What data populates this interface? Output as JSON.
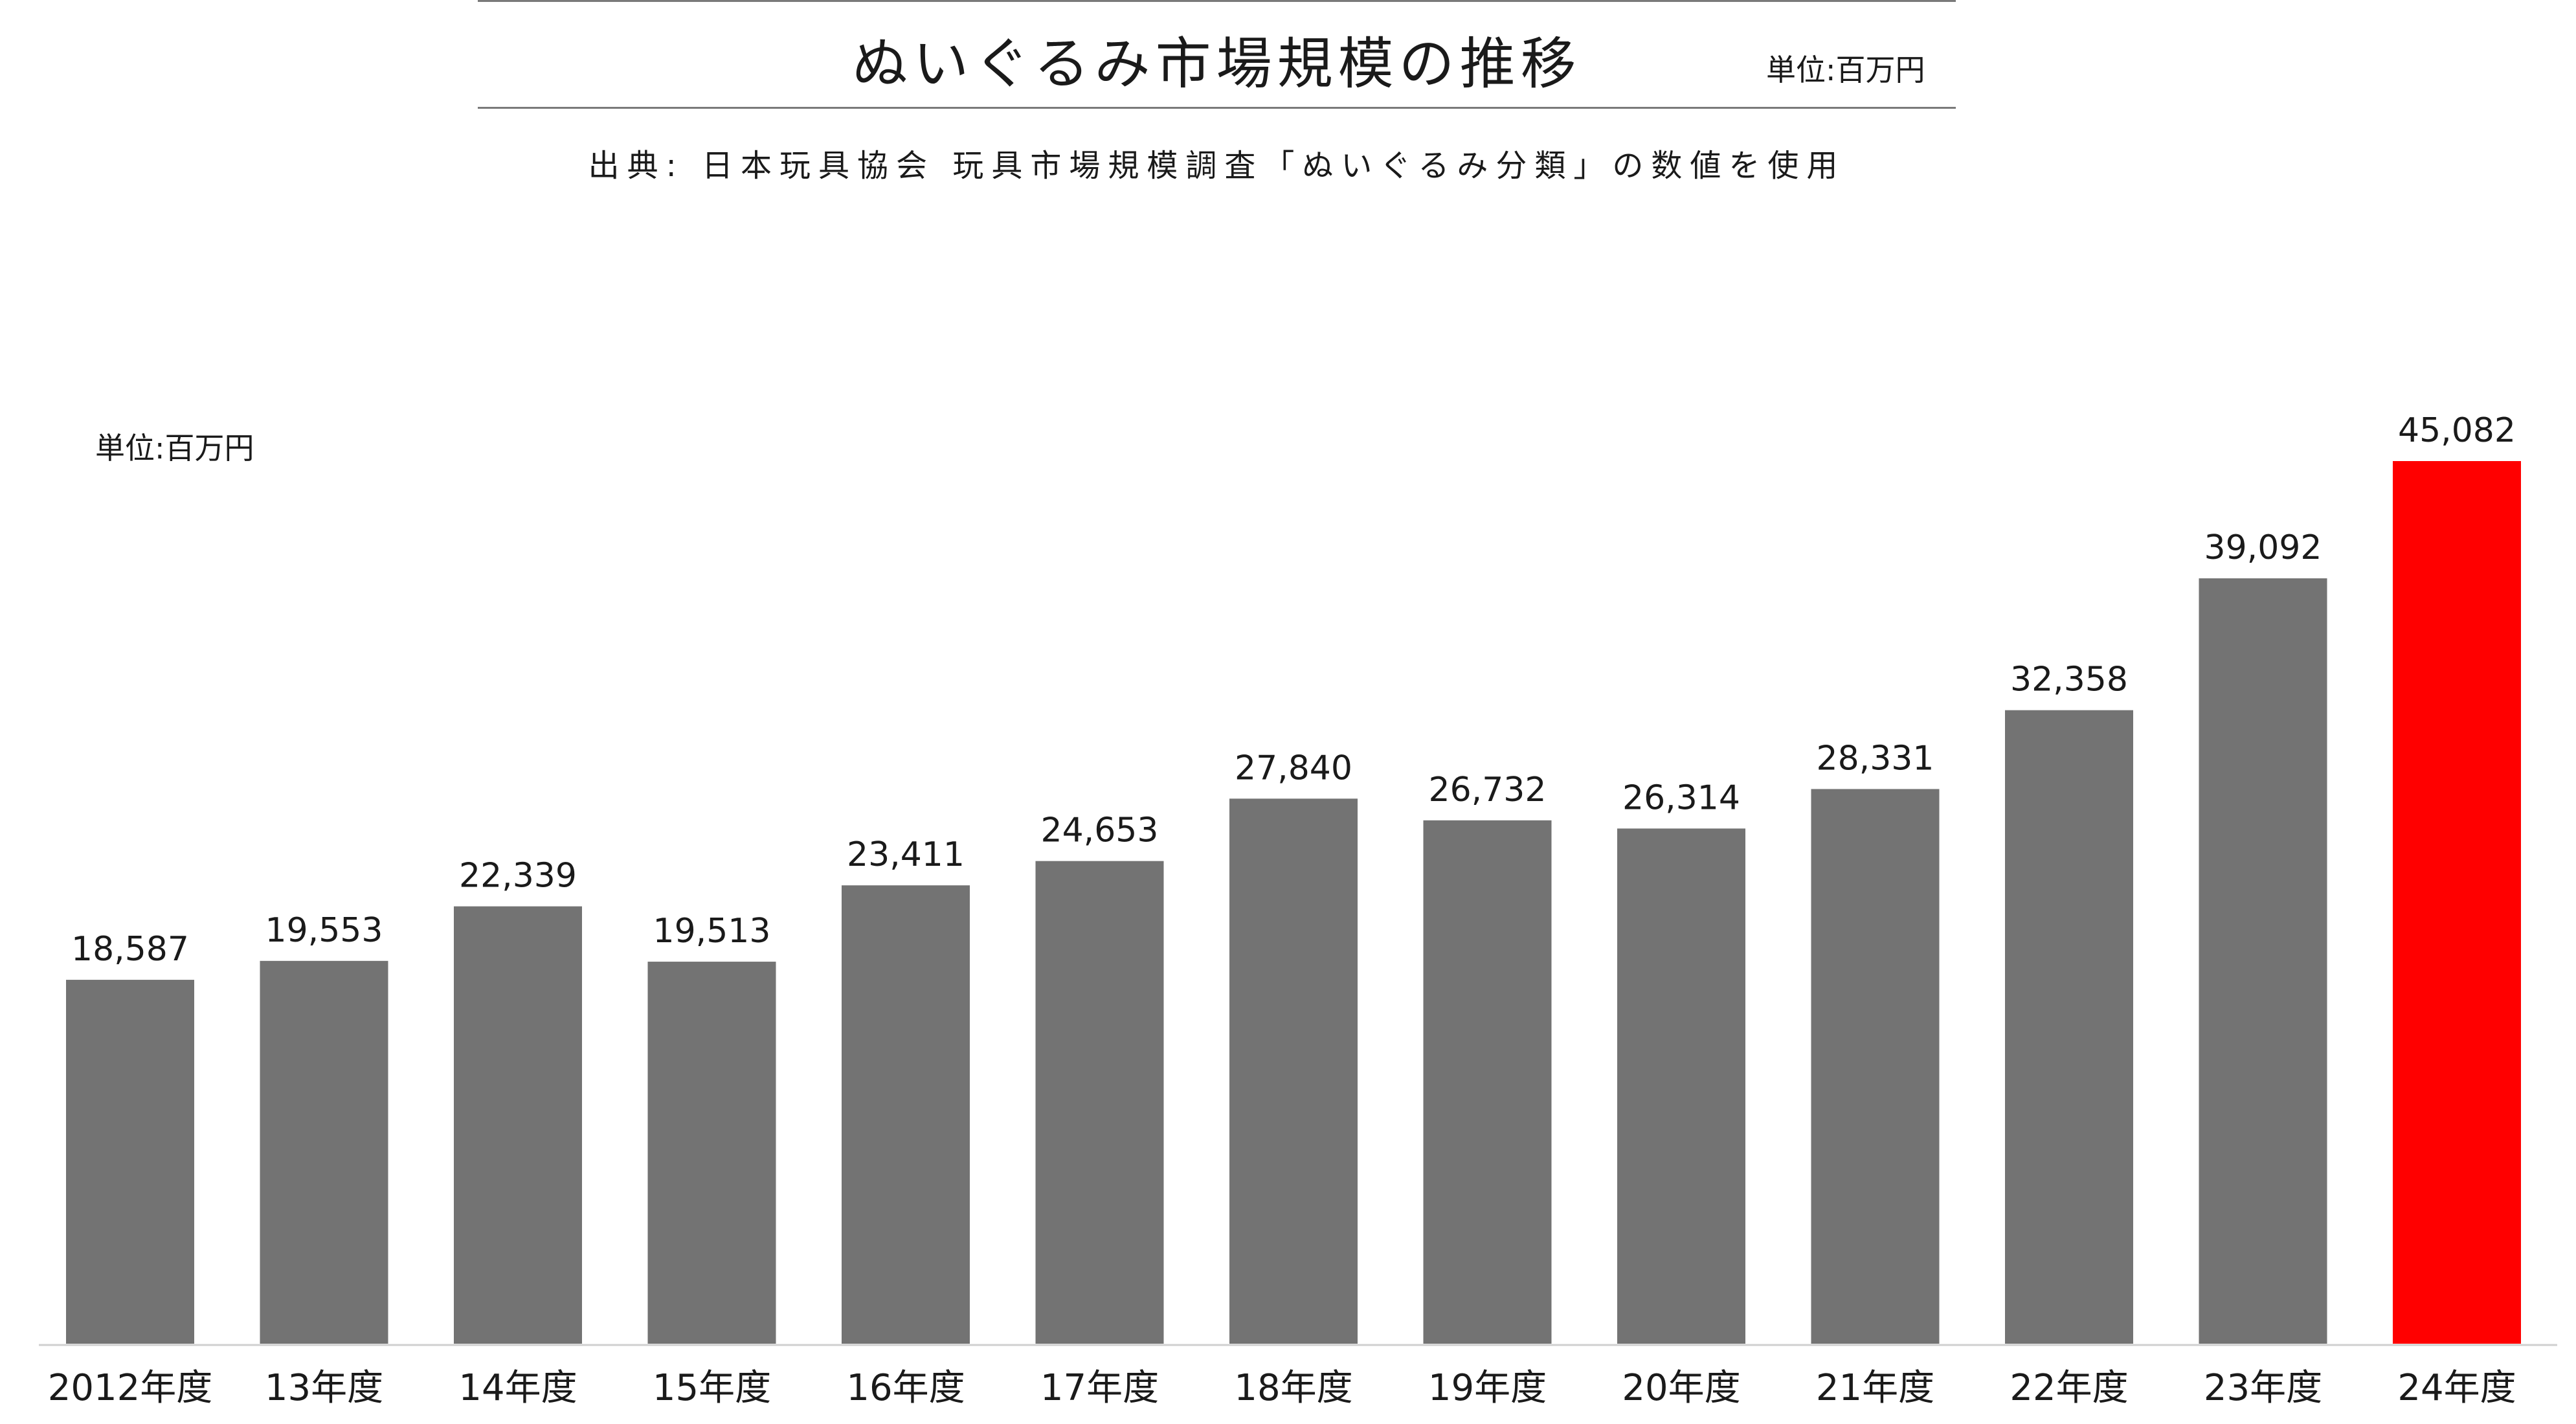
{
  "header": {
    "title": "ぬいぐるみ市場規模の推移",
    "unit": "単位:百万円",
    "source": "出典: 日本玩具協会 玩具市場規模調査「ぬいぐるみ分類」の数値を使用"
  },
  "colors": {
    "bar_default": "#737373",
    "bar_highlight": "#ff0000",
    "axis_line": "#d0d0d0"
  },
  "chart_data": {
    "type": "bar",
    "title": "ぬいぐるみ市場規模の推移",
    "unit_label": "単位:百万円",
    "categories": [
      "2012年度",
      "13年度",
      "14年度",
      "15年度",
      "16年度",
      "17年度",
      "18年度",
      "19年度",
      "20年度",
      "21年度",
      "22年度",
      "23年度",
      "24年度"
    ],
    "values": [
      18587,
      19553,
      22339,
      19513,
      23411,
      24653,
      27840,
      26732,
      26314,
      28331,
      32358,
      39092,
      45082
    ],
    "value_labels": [
      "18,587",
      "19,553",
      "22,339",
      "19,513",
      "23,411",
      "24,653",
      "27,840",
      "26,732",
      "26,314",
      "28,331",
      "32,358",
      "39,092",
      "45,082"
    ],
    "highlight_index": 12,
    "ylim": [
      0,
      45082
    ],
    "grid": false,
    "legend": "none"
  }
}
